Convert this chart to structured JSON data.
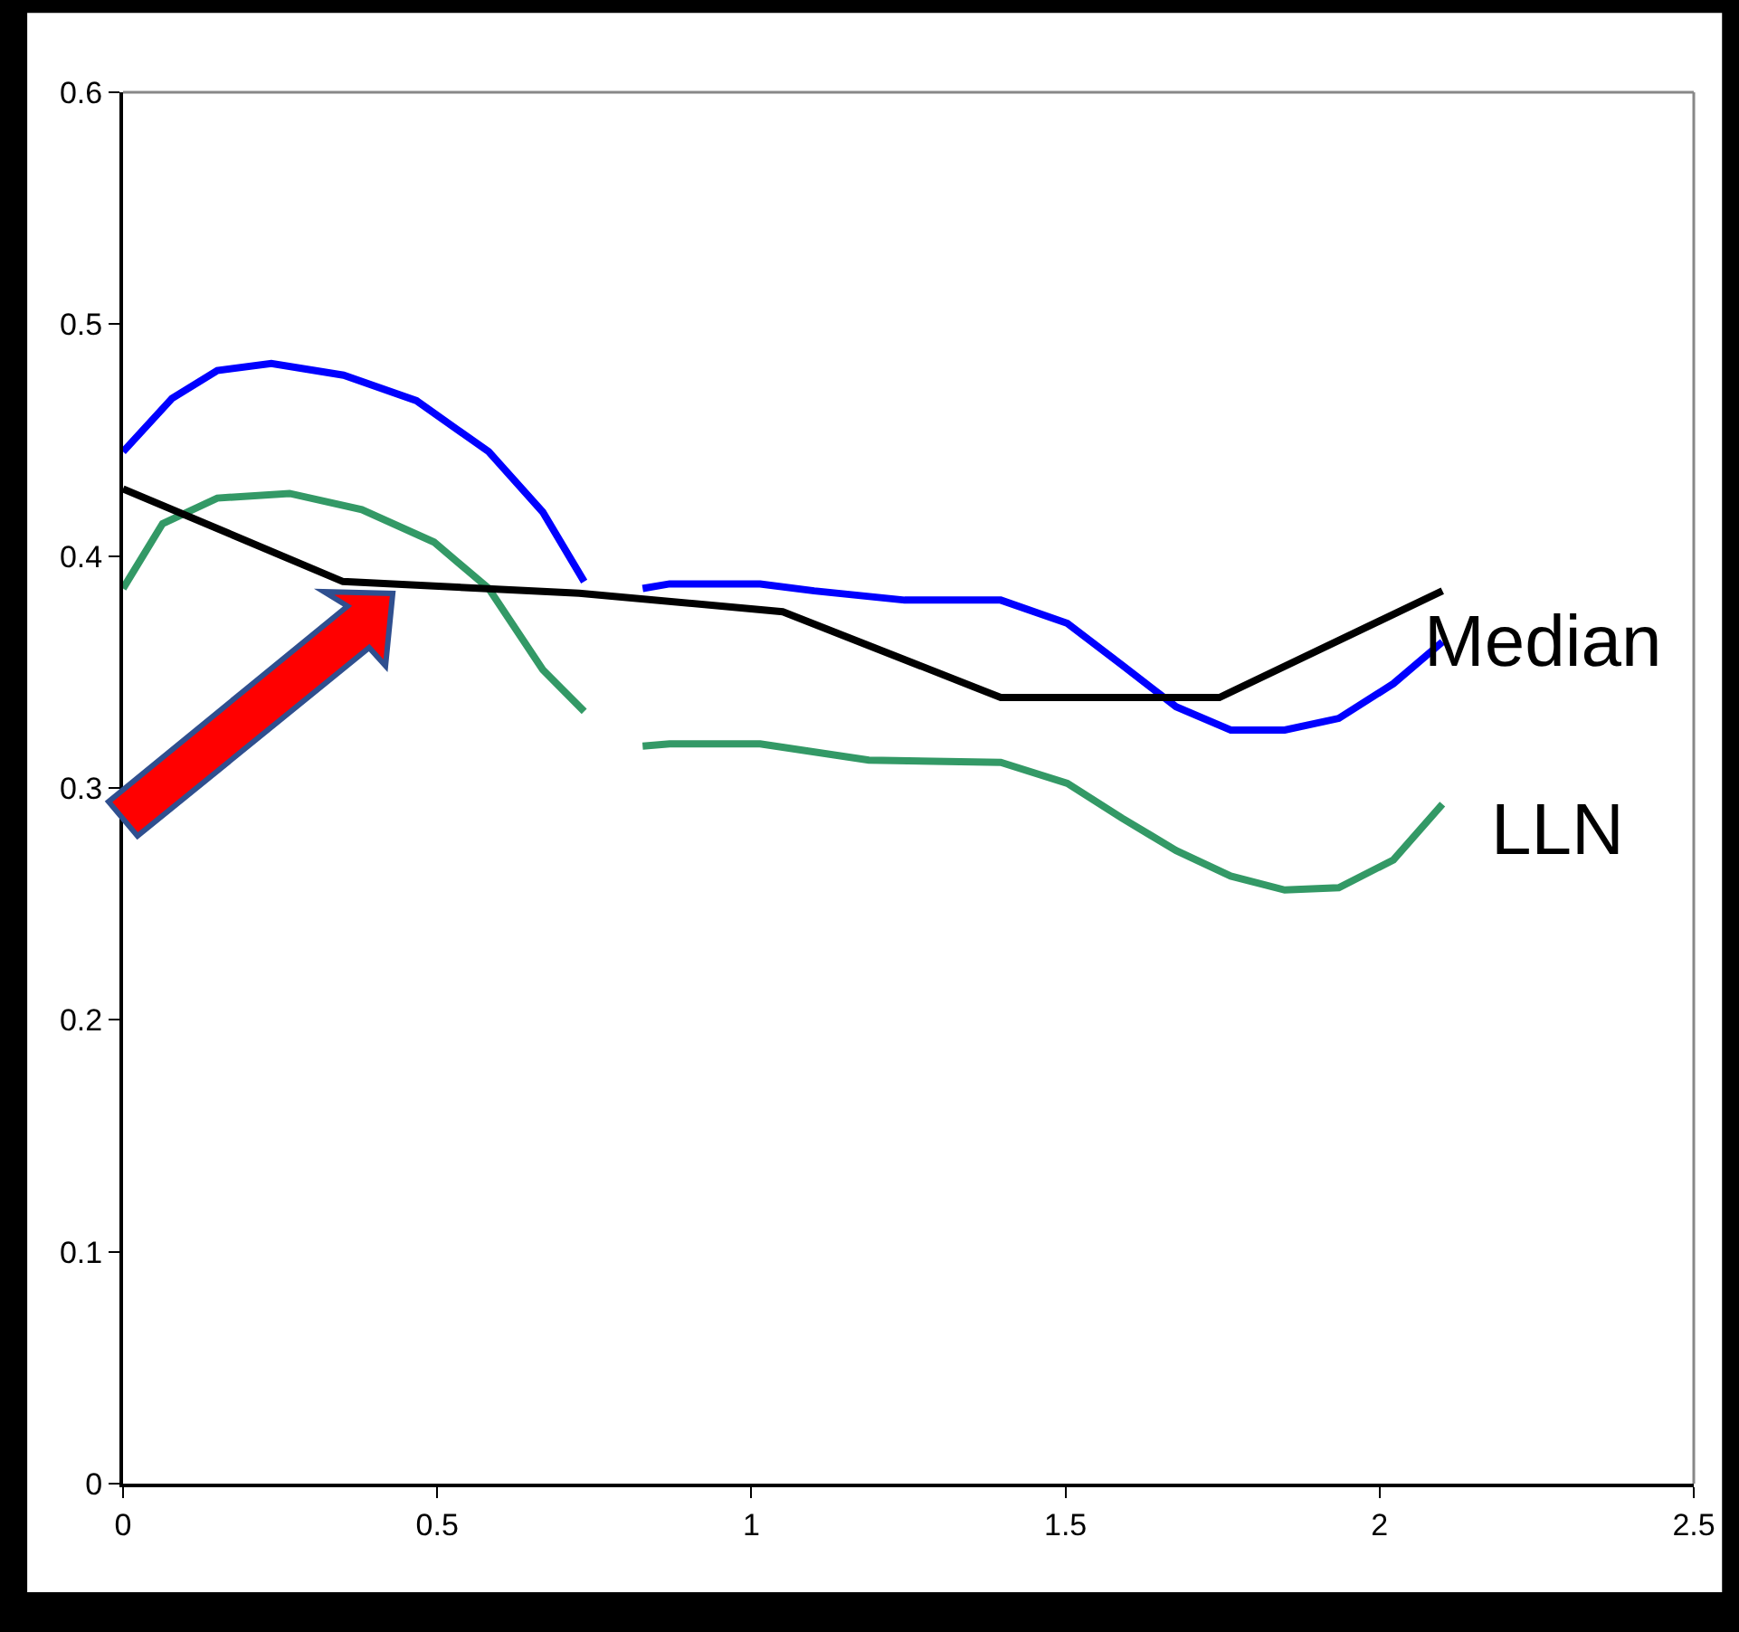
{
  "chart_data": {
    "type": "line",
    "series": [
      {
        "name": "Median",
        "color": "#0000ff",
        "x": [
          0,
          0.078,
          0.15,
          0.236,
          0.351,
          0.467,
          0.582,
          0.668,
          0.734,
          0.78,
          0.827,
          0.87,
          1.014,
          1.1,
          1.244,
          1.397,
          1.503,
          1.59,
          1.676,
          1.763,
          1.849,
          1.935,
          2.022,
          2.1
        ],
        "values": [
          0.445,
          0.468,
          0.48,
          0.483,
          0.478,
          0.467,
          0.445,
          0.419,
          0.389,
          null,
          0.386,
          0.388,
          0.388,
          0.385,
          0.381,
          0.381,
          0.371,
          0.353,
          0.335,
          0.325,
          0.325,
          0.33,
          0.345,
          0.363
        ]
      },
      {
        "name": "LLN",
        "color": "#339966",
        "x": [
          0,
          0.063,
          0.15,
          0.265,
          0.38,
          0.495,
          0.582,
          0.668,
          0.734,
          0.78,
          0.827,
          0.87,
          1.014,
          1.187,
          1.397,
          1.503,
          1.59,
          1.676,
          1.763,
          1.849,
          1.935,
          2.022,
          2.1
        ],
        "values": [
          0.386,
          0.414,
          0.425,
          0.427,
          0.42,
          0.406,
          0.386,
          0.351,
          0.333,
          null,
          0.318,
          0.319,
          0.319,
          0.312,
          0.311,
          0.302,
          0.287,
          0.273,
          0.262,
          0.256,
          0.257,
          0.269,
          0.293
        ]
      },
      {
        "color": "#000000",
        "x": [
          0,
          0.35,
          0.726,
          1.05,
          1.397,
          1.745,
          2.1
        ],
        "values": [
          0.429,
          0.389,
          0.384,
          0.376,
          0.339,
          0.339,
          0.385
        ]
      }
    ],
    "xlim": [
      0,
      2.5
    ],
    "xticks": [
      0,
      0.5,
      1,
      1.5,
      2,
      2.5
    ],
    "ylim": [
      0,
      0.6
    ],
    "yticks": [
      0,
      0.1,
      0.2,
      0.3,
      0.4,
      0.5,
      0.6
    ],
    "legend": false,
    "marker": "none",
    "line_style": "solid"
  }
}
